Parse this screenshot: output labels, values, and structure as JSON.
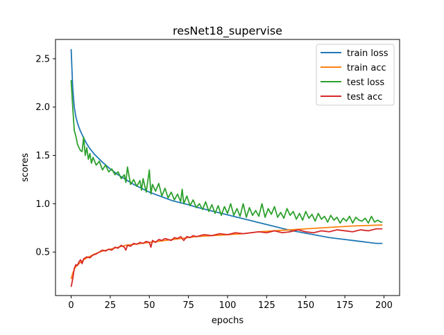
{
  "chart_data": {
    "type": "line",
    "title": "resNet18_supervise",
    "xlabel": "epochs",
    "ylabel": "scores",
    "xlim": [
      -10,
      210
    ],
    "ylim": [
      0.05,
      2.7
    ],
    "xticks": [
      0,
      25,
      50,
      75,
      100,
      125,
      150,
      175,
      200
    ],
    "yticks": [
      0.5,
      1.0,
      1.5,
      2.0,
      2.5
    ],
    "xtick_labels": [
      "0",
      "25",
      "50",
      "75",
      "100",
      "125",
      "150",
      "175",
      "200"
    ],
    "ytick_labels": [
      "0.5",
      "1.0",
      "1.5",
      "2.0",
      "2.5"
    ],
    "grid": false,
    "legend_position": "top-right",
    "series": [
      {
        "name": "train loss",
        "color": "#1f77b4",
        "x": [
          0,
          1,
          2,
          3,
          4,
          5,
          6,
          8,
          10,
          12,
          15,
          20,
          25,
          30,
          35,
          40,
          45,
          50,
          55,
          60,
          65,
          70,
          75,
          80,
          85,
          90,
          95,
          100,
          105,
          110,
          115,
          120,
          125,
          130,
          135,
          140,
          145,
          150,
          155,
          160,
          165,
          170,
          175,
          180,
          185,
          190,
          195,
          199
        ],
        "values": [
          2.6,
          2.2,
          2.0,
          1.9,
          1.84,
          1.79,
          1.75,
          1.68,
          1.62,
          1.57,
          1.51,
          1.43,
          1.36,
          1.3,
          1.25,
          1.2,
          1.16,
          1.12,
          1.09,
          1.06,
          1.03,
          1.01,
          0.99,
          0.965,
          0.945,
          0.925,
          0.905,
          0.885,
          0.865,
          0.845,
          0.825,
          0.805,
          0.785,
          0.765,
          0.745,
          0.725,
          0.71,
          0.695,
          0.68,
          0.665,
          0.65,
          0.64,
          0.63,
          0.62,
          0.61,
          0.6,
          0.59,
          0.59
        ]
      },
      {
        "name": "train acc",
        "color": "#ff7f0e",
        "x": [
          0,
          1,
          2,
          3,
          5,
          8,
          10,
          15,
          20,
          25,
          30,
          35,
          40,
          50,
          60,
          70,
          80,
          90,
          100,
          110,
          120,
          130,
          140,
          150,
          160,
          170,
          180,
          190,
          199
        ],
        "values": [
          0.22,
          0.28,
          0.32,
          0.35,
          0.38,
          0.42,
          0.44,
          0.48,
          0.51,
          0.53,
          0.55,
          0.57,
          0.58,
          0.6,
          0.62,
          0.64,
          0.66,
          0.67,
          0.68,
          0.69,
          0.71,
          0.72,
          0.73,
          0.74,
          0.75,
          0.76,
          0.77,
          0.775,
          0.78
        ]
      },
      {
        "name": "test loss",
        "color": "#2ca02c",
        "x": [
          0,
          1,
          2,
          3,
          4,
          5,
          6,
          7,
          8,
          9,
          10,
          11,
          12,
          13,
          14,
          16,
          18,
          20,
          22,
          24,
          26,
          28,
          30,
          32,
          34,
          35,
          36,
          38,
          40,
          42,
          44,
          45,
          46,
          48,
          50,
          51,
          52,
          54,
          56,
          58,
          60,
          62,
          64,
          66,
          68,
          70,
          71,
          72,
          74,
          76,
          78,
          80,
          82,
          84,
          86,
          88,
          90,
          92,
          94,
          96,
          98,
          100,
          102,
          104,
          106,
          108,
          110,
          112,
          114,
          116,
          118,
          120,
          122,
          124,
          126,
          128,
          130,
          132,
          134,
          136,
          138,
          140,
          142,
          144,
          146,
          148,
          150,
          152,
          154,
          156,
          158,
          160,
          162,
          164,
          166,
          168,
          170,
          172,
          174,
          176,
          178,
          180,
          182,
          184,
          186,
          188,
          190,
          192,
          194,
          196,
          198,
          199
        ],
        "values": [
          2.28,
          2.0,
          1.76,
          1.7,
          1.62,
          1.58,
          1.55,
          1.54,
          1.69,
          1.5,
          1.58,
          1.46,
          1.52,
          1.42,
          1.48,
          1.4,
          1.44,
          1.35,
          1.4,
          1.33,
          1.36,
          1.3,
          1.33,
          1.26,
          1.3,
          1.22,
          1.38,
          1.2,
          1.25,
          1.18,
          1.24,
          1.14,
          1.26,
          1.12,
          1.35,
          1.1,
          1.2,
          1.13,
          1.21,
          1.08,
          1.16,
          1.06,
          1.12,
          1.04,
          1.1,
          1.02,
          1.15,
          1.0,
          1.08,
          0.98,
          1.04,
          0.96,
          1.0,
          0.94,
          1.02,
          0.92,
          0.99,
          0.9,
          0.98,
          0.88,
          0.97,
          0.9,
          1.0,
          0.88,
          0.95,
          0.87,
          1.0,
          0.86,
          0.96,
          0.88,
          0.93,
          0.87,
          1.0,
          0.86,
          0.95,
          0.89,
          0.97,
          0.86,
          0.91,
          0.85,
          0.95,
          0.88,
          0.92,
          0.84,
          0.9,
          0.83,
          0.92,
          0.85,
          0.89,
          0.82,
          0.9,
          0.84,
          0.87,
          0.81,
          0.88,
          0.83,
          0.86,
          0.8,
          0.85,
          0.82,
          0.87,
          0.8,
          0.86,
          0.83,
          0.82,
          0.85,
          0.8,
          0.87,
          0.81,
          0.83,
          0.81,
          0.81
        ]
      },
      {
        "name": "test acc",
        "color": "#d62728",
        "x": [
          0,
          1,
          2,
          3,
          4,
          5,
          6,
          7,
          8,
          10,
          12,
          14,
          16,
          18,
          20,
          22,
          24,
          26,
          28,
          30,
          32,
          34,
          35,
          36,
          38,
          40,
          42,
          44,
          46,
          48,
          50,
          51,
          52,
          54,
          56,
          58,
          60,
          62,
          64,
          66,
          68,
          70,
          72,
          74,
          76,
          78,
          80,
          85,
          90,
          95,
          100,
          105,
          110,
          115,
          120,
          125,
          130,
          135,
          140,
          145,
          150,
          155,
          160,
          165,
          170,
          175,
          180,
          185,
          190,
          195,
          199
        ],
        "values": [
          0.14,
          0.22,
          0.33,
          0.37,
          0.36,
          0.4,
          0.42,
          0.38,
          0.43,
          0.45,
          0.44,
          0.47,
          0.48,
          0.5,
          0.52,
          0.51,
          0.53,
          0.52,
          0.55,
          0.54,
          0.57,
          0.55,
          0.52,
          0.57,
          0.56,
          0.59,
          0.58,
          0.6,
          0.59,
          0.61,
          0.6,
          0.55,
          0.62,
          0.6,
          0.63,
          0.62,
          0.64,
          0.63,
          0.62,
          0.65,
          0.64,
          0.66,
          0.62,
          0.66,
          0.65,
          0.67,
          0.66,
          0.68,
          0.67,
          0.69,
          0.68,
          0.7,
          0.69,
          0.7,
          0.71,
          0.7,
          0.72,
          0.7,
          0.71,
          0.73,
          0.71,
          0.7,
          0.72,
          0.71,
          0.73,
          0.72,
          0.71,
          0.73,
          0.72,
          0.74,
          0.74
        ]
      }
    ]
  }
}
